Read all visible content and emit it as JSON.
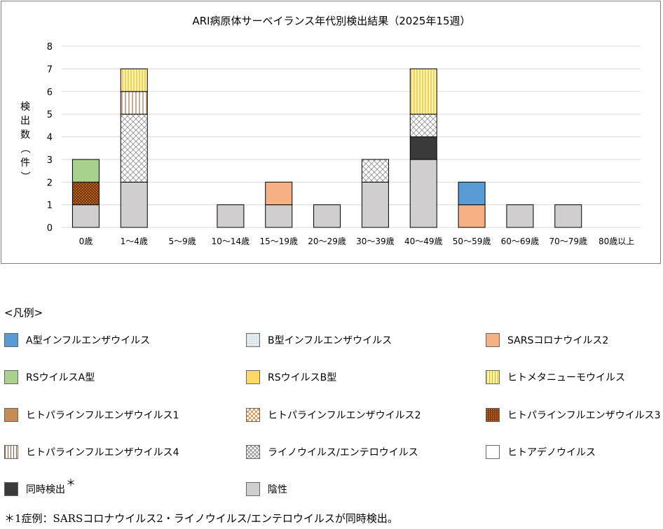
{
  "chart_data": {
    "type": "bar",
    "stacked": true,
    "title": "ARI病原体サーベイランス年代別検出結果（2025年15週）",
    "ylabel": "検出数（件）",
    "xlabel": "",
    "ylim": [
      0,
      8
    ],
    "yticks": [
      "0",
      "1",
      "2",
      "3",
      "4",
      "5",
      "6",
      "7",
      "8"
    ],
    "grid": true,
    "categories": [
      "0歳",
      "1～4歳",
      "5～9歳",
      "10～14歳",
      "15～19歳",
      "20～29歳",
      "30～39歳",
      "40～49歳",
      "50～59歳",
      "60～69歳",
      "70～79歳",
      "80歳以上"
    ],
    "series": [
      {
        "name": "陰性",
        "key": "neg",
        "values": [
          1,
          2,
          0,
          1,
          1,
          1,
          2,
          3,
          0,
          1,
          1,
          0
        ]
      },
      {
        "name": "同時検出",
        "key": "coinf",
        "values": [
          0,
          0,
          0,
          0,
          0,
          0,
          0,
          1,
          0,
          0,
          0,
          0
        ]
      },
      {
        "name": "ヒトパラインフルエンザウイルス3",
        "key": "hpiv3",
        "values": [
          1,
          0,
          0,
          0,
          0,
          0,
          0,
          0,
          0,
          0,
          0,
          0
        ]
      },
      {
        "name": "RSウイルスA型",
        "key": "rsva",
        "values": [
          1,
          0,
          0,
          0,
          0,
          0,
          0,
          0,
          0,
          0,
          0,
          0
        ]
      },
      {
        "name": "ライノウイルス/エンテロウイルス",
        "key": "rhino",
        "values": [
          0,
          3,
          0,
          0,
          0,
          0,
          1,
          1,
          0,
          0,
          0,
          0
        ]
      },
      {
        "name": "ヒトパラインフルエンザウイルス4",
        "key": "hpiv4",
        "values": [
          0,
          1,
          0,
          0,
          0,
          0,
          0,
          0,
          0,
          0,
          0,
          0
        ]
      },
      {
        "name": "ヒトメタニューモウイルス",
        "key": "hmpv",
        "values": [
          0,
          1,
          0,
          0,
          0,
          0,
          0,
          2,
          0,
          0,
          0,
          0
        ]
      },
      {
        "name": "SARSコロナウイルス2",
        "key": "sars",
        "values": [
          0,
          0,
          0,
          0,
          1,
          0,
          0,
          0,
          1,
          0,
          0,
          0
        ]
      },
      {
        "name": "A型インフルエンザウイルス",
        "key": "fluA",
        "values": [
          0,
          0,
          0,
          0,
          0,
          0,
          0,
          0,
          1,
          0,
          0,
          0
        ]
      }
    ]
  },
  "legend": {
    "title": "<凡例>",
    "items": [
      {
        "label": "A型インフルエンザウイルス",
        "key": "fluA"
      },
      {
        "label": "B型インフルエンザウイルス",
        "key": "fluB"
      },
      {
        "label": "SARSコロナウイルス2",
        "key": "sars"
      },
      {
        "label": "RSウイルスA型",
        "key": "rsva"
      },
      {
        "label": "RSウイルスB型",
        "key": "rsvb"
      },
      {
        "label": "ヒトメタニューモウイルス",
        "key": "hmpv"
      },
      {
        "label": "ヒトパラインフルエンザウイルス1",
        "key": "hpiv1"
      },
      {
        "label": "ヒトパラインフルエンザウイルス2",
        "key": "hpiv2"
      },
      {
        "label": "ヒトパラインフルエンザウイルス3",
        "key": "hpiv3"
      },
      {
        "label": "ヒトパラインフルエンザウイルス4",
        "key": "hpiv4"
      },
      {
        "label": "ライノウイルス/エンテロウイルス",
        "key": "rhino"
      },
      {
        "label": "ヒトアデノウイルス",
        "key": "adeno"
      },
      {
        "label": "同時検出",
        "key": "coinf",
        "mark": "＊"
      },
      {
        "label": "陰性",
        "key": "neg"
      }
    ]
  },
  "colors": {
    "fluA": "#5b9bd5",
    "fluB": "#ddebf7",
    "sars": "#f4b183",
    "rsva": "#a9d18e",
    "rsvb": "#ffd966",
    "hmpv": "#fff2b3",
    "hpiv1": "#c68a55",
    "hpiv2": "#e59a55",
    "hpiv3": "#843c0c",
    "hpiv4": "#a0522d",
    "rhino": "#bfbfbf",
    "adeno": "#ffffff",
    "coinf": "#3a3a3a",
    "neg": "#d0cece"
  },
  "footnote": "＊1症例：SARSコロナウイルス2・ライノウイルス/エンテロウイルスが同時検出。"
}
